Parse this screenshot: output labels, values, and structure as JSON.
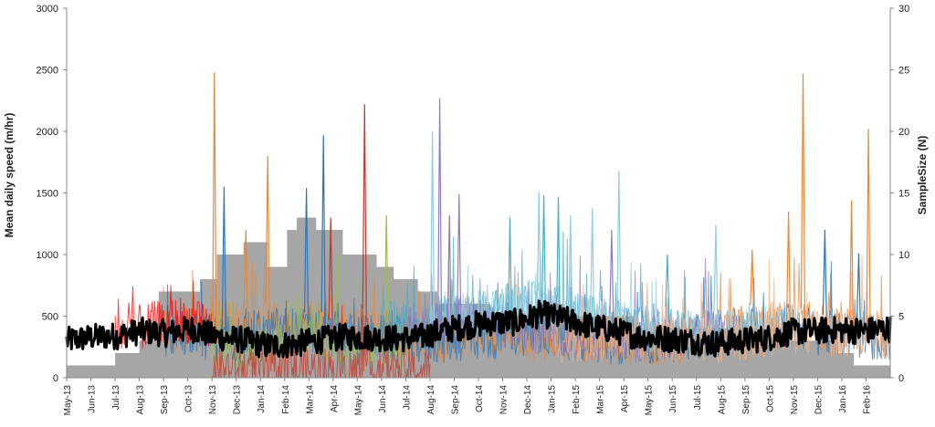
{
  "chart_data": {
    "type": "line",
    "ylabel": "Mean daily speed (m/hr)",
    "y2label": "SampleSize (N)",
    "ylim": [
      0,
      3000
    ],
    "y2lim": [
      0,
      30
    ],
    "y_ticks": [
      "0",
      "500",
      "1000",
      "1500",
      "2000",
      "2500",
      "3000"
    ],
    "y2_ticks": [
      "0",
      "5",
      "10",
      "15",
      "20",
      "25",
      "30"
    ],
    "x_categories": [
      "May-13",
      "Jun-13",
      "Jul-13",
      "Aug-13",
      "Sep-13",
      "Oct-13",
      "Nov-13",
      "Dec-13",
      "Jan-14",
      "Feb-14",
      "Mar-14",
      "Apr-14",
      "May-14",
      "Jun-14",
      "Jul-14",
      "Aug-14",
      "Sep-14",
      "Oct-14",
      "Nov-14",
      "Dec-14",
      "Jan-15",
      "Feb-15",
      "Mar-15",
      "Apr-15",
      "May-15",
      "Jun-15",
      "Jul-15",
      "Aug-15",
      "Sep-15",
      "Oct-15",
      "Nov-15",
      "Dec-15",
      "Jan-16",
      "Feb-16"
    ],
    "grid": false,
    "legend": "none",
    "sample_size": {
      "axis": "secondary",
      "color": "#a6a6a6",
      "steps": [
        {
          "month": 0,
          "n": 1
        },
        {
          "month": 2,
          "n": 2
        },
        {
          "month": 3,
          "n": 3
        },
        {
          "month": 3.8,
          "n": 7
        },
        {
          "month": 5.5,
          "n": 8
        },
        {
          "month": 6.2,
          "n": 10
        },
        {
          "month": 7.3,
          "n": 11
        },
        {
          "month": 8.3,
          "n": 9
        },
        {
          "month": 9.1,
          "n": 12
        },
        {
          "month": 9.5,
          "n": 13
        },
        {
          "month": 10.3,
          "n": 12
        },
        {
          "month": 11.4,
          "n": 10
        },
        {
          "month": 12.8,
          "n": 9
        },
        {
          "month": 13.5,
          "n": 8
        },
        {
          "month": 14.5,
          "n": 7
        },
        {
          "month": 15.3,
          "n": 6
        },
        {
          "month": 17.5,
          "n": 5
        },
        {
          "month": 19.5,
          "n": 6
        },
        {
          "month": 20.5,
          "n": 5
        },
        {
          "month": 23.5,
          "n": 4
        },
        {
          "month": 29.5,
          "n": 3
        },
        {
          "month": 31.8,
          "n": 2
        },
        {
          "month": 32.5,
          "n": 1
        },
        {
          "month": 34,
          "n": 1
        }
      ]
    },
    "spikes": [
      {
        "color": "#e8883a",
        "points": [
          [
            6.1,
            2480
          ],
          [
            8.3,
            1800
          ],
          [
            7.4,
            1200
          ],
          [
            30.4,
            2470
          ],
          [
            32.4,
            1440
          ],
          [
            33.1,
            2020
          ],
          [
            29.8,
            1350
          ],
          [
            28.3,
            1040
          ]
        ]
      },
      {
        "color": "#2e75b6",
        "points": [
          [
            6.5,
            1550
          ],
          [
            10.6,
            1970
          ],
          [
            9.9,
            1540
          ],
          [
            31.3,
            1200
          ],
          [
            32.7,
            1010
          ]
        ]
      },
      {
        "color": "#c0392b",
        "points": [
          [
            12.3,
            2220
          ],
          [
            10.9,
            1300
          ]
        ]
      },
      {
        "color": "#8e7cc3",
        "points": [
          [
            15.4,
            2270
          ],
          [
            15.8,
            1320
          ],
          [
            16.2,
            1490
          ],
          [
            22.5,
            1200
          ]
        ]
      },
      {
        "color": "#93cddd",
        "points": [
          [
            15.1,
            2000
          ],
          [
            22.8,
            1680
          ],
          [
            19.5,
            1510
          ],
          [
            20.8,
            1320
          ],
          [
            26.8,
            1240
          ],
          [
            21.7,
            1380
          ]
        ]
      },
      {
        "color": "#4bacc6",
        "points": [
          [
            18.3,
            1300
          ],
          [
            19.7,
            1480
          ],
          [
            20.3,
            1470
          ],
          [
            24.8,
            1000
          ]
        ]
      },
      {
        "color": "#9bbb59",
        "points": [
          [
            13.2,
            1320
          ],
          [
            11.2,
            1000
          ]
        ]
      }
    ],
    "series": [
      {
        "name": "",
        "color": "#000000",
        "width": 3,
        "x_range": [
          0,
          34
        ],
        "base": [
          300,
          330,
          340,
          380,
          360,
          400,
          330,
          310,
          260,
          270,
          300,
          330,
          330,
          320,
          320,
          380,
          420,
          450,
          450,
          520,
          470,
          420,
          380,
          330,
          320,
          300,
          280,
          300,
          320,
          370,
          380,
          390,
          380,
          400
        ]
      },
      {
        "name": "",
        "color": "#e8883a",
        "width": 1,
        "x_range": [
          4,
          34
        ],
        "base": [
          380,
          420,
          460,
          440,
          430,
          420,
          470,
          480,
          400,
          360,
          330,
          300,
          360,
          380,
          380,
          320,
          330,
          310,
          300,
          290,
          280,
          330,
          360,
          400,
          420,
          450,
          420,
          380,
          360,
          360
        ]
      },
      {
        "name": "",
        "color": "#2e75b6",
        "width": 1,
        "x_range": [
          4,
          34
        ],
        "base": [
          360,
          340,
          320,
          330,
          380,
          400,
          360,
          350,
          330,
          320,
          300,
          300,
          320,
          330,
          360,
          380,
          340,
          310,
          300,
          290,
          300,
          340,
          360,
          380,
          400,
          420,
          380,
          340,
          330,
          320
        ]
      },
      {
        "name": "",
        "color": "#4bacc6",
        "width": 1,
        "x_range": [
          13,
          27
        ],
        "base": [
          420,
          450,
          480,
          500,
          520,
          560,
          600,
          560,
          500,
          450,
          400,
          380,
          360,
          340
        ]
      },
      {
        "name": "",
        "color": "#8e7cc3",
        "width": 1,
        "x_range": [
          14,
          28
        ],
        "base": [
          400,
          460,
          500,
          480,
          420,
          380,
          360,
          340,
          320,
          300,
          330,
          350,
          370,
          350
        ]
      },
      {
        "name": "",
        "color": "#93cddd",
        "width": 1,
        "x_range": [
          15,
          30
        ],
        "base": [
          500,
          520,
          560,
          600,
          620,
          580,
          500,
          450,
          400,
          380,
          360,
          380,
          400,
          420,
          420
        ]
      },
      {
        "name": "",
        "color": "#ff0000",
        "width": 1,
        "x_range": [
          2,
          6
        ],
        "base": [
          350,
          420,
          480,
          400
        ]
      },
      {
        "name": "",
        "color": "#9bbb59",
        "width": 1,
        "x_range": [
          6,
          14
        ],
        "base": [
          250,
          220,
          260,
          300,
          320,
          280,
          260,
          240
        ]
      },
      {
        "name": "",
        "color": "#c0392b",
        "width": 1,
        "x_range": [
          6,
          15
        ],
        "base": [
          80,
          70,
          60,
          60,
          70,
          65,
          60,
          55,
          60
        ]
      },
      {
        "name": "",
        "color": "#f4b183",
        "width": 1,
        "x_range": [
          20,
          34
        ],
        "base": [
          300,
          320,
          340,
          350,
          330,
          310,
          300,
          320,
          340,
          360,
          380,
          360,
          340,
          320
        ]
      }
    ]
  }
}
